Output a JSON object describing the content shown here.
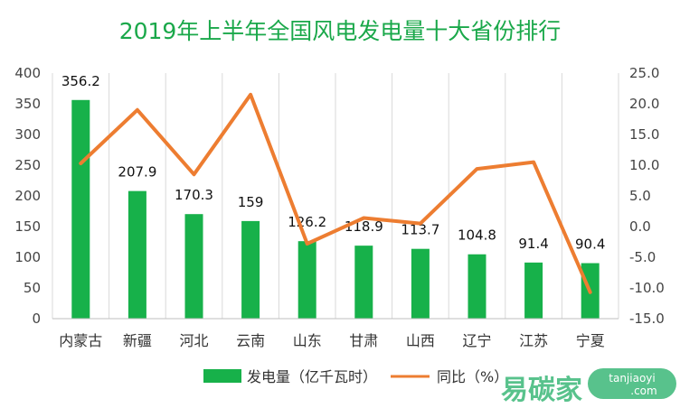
{
  "chart_data": {
    "type": "bar",
    "title": "2019年上半年全国风电发电量十大省份排行",
    "categories": [
      "内蒙古",
      "新疆",
      "河北",
      "云南",
      "山东",
      "甘肃",
      "山西",
      "辽宁",
      "江苏",
      "宁夏"
    ],
    "series": [
      {
        "name": "发电量（亿千瓦时）",
        "type": "bar",
        "axis": "left",
        "color": "#17b14a",
        "values": [
          356.2,
          207.9,
          170.3,
          159,
          126.2,
          118.9,
          113.7,
          104.8,
          91.4,
          90.4
        ],
        "labels": [
          "356.2",
          "207.9",
          "170.3",
          "159",
          "126.2",
          "118.9",
          "113.7",
          "104.8",
          "91.4",
          "90.4"
        ]
      },
      {
        "name": "同比（%）",
        "type": "line",
        "axis": "right",
        "color": "#ed7d31",
        "values": [
          10.3,
          19.0,
          8.5,
          21.5,
          -2.8,
          1.4,
          0.5,
          9.4,
          10.5,
          -10.7
        ]
      }
    ],
    "y_left": {
      "min": 0,
      "max": 400,
      "step": 50,
      "ticks": [
        "0",
        "50",
        "100",
        "150",
        "200",
        "250",
        "300",
        "350",
        "400"
      ]
    },
    "y_right": {
      "min": -15,
      "max": 25,
      "step": 5,
      "ticks": [
        "-15.0",
        "-10.0",
        "-5.0",
        "0.0",
        "5.0",
        "10.0",
        "15.0",
        "20.0",
        "25.0"
      ]
    },
    "grid": "vertical",
    "legend_position": "bottom"
  },
  "watermark": {
    "text": "易碳家",
    "site": "tanjiaoyi",
    "domain": ".com",
    "color": "#3cb878"
  }
}
